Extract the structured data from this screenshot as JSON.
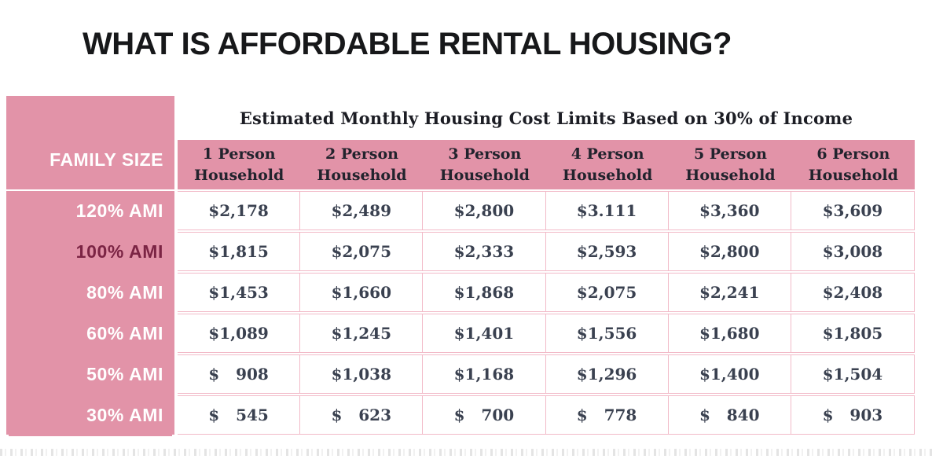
{
  "title": "WHAT IS AFFORDABLE RENTAL HOUSING?",
  "table": {
    "corner_label": "FAMILY SIZE",
    "header": "Estimated Monthly Housing Cost Limits Based on 30% of Income",
    "columns": [
      {
        "label": "1 Person Household"
      },
      {
        "label": "2 Person Household"
      },
      {
        "label": "3 Person Household"
      },
      {
        "label": "4 Person Household"
      },
      {
        "label": "5 Person Household"
      },
      {
        "label": "6 Person Household"
      }
    ],
    "rows": [
      {
        "label": "120% AMI",
        "label_color": "#ffffff",
        "values": [
          "$2,178",
          "$2,489",
          "$2,800",
          "$3.111",
          "$3,360",
          "$3,609"
        ]
      },
      {
        "label": "100% AMI",
        "label_color": "#7b2444",
        "values": [
          "$1,815",
          "$2,075",
          "$2,333",
          "$2,593",
          "$2,800",
          "$3,008"
        ]
      },
      {
        "label": "80% AMI",
        "label_color": "#ffffff",
        "values": [
          "$1,453",
          "$1,660",
          "$1,868",
          "$2,075",
          "$2,241",
          "$2,408"
        ]
      },
      {
        "label": "60% AMI",
        "label_color": "#ffffff",
        "values": [
          "$1,089",
          "$1,245",
          "$1,401",
          "$1,556",
          "$1,680",
          "$1,805"
        ]
      },
      {
        "label": "50% AMI",
        "label_color": "#ffffff",
        "values": [
          "$   908",
          "$1,038",
          "$1,168",
          "$1,296",
          "$1,400",
          "$1,504"
        ]
      },
      {
        "label": "30% AMI",
        "label_color": "#ffffff",
        "values": [
          "$   545",
          "$   623",
          "$   700",
          "$   778",
          "$   840",
          "$   903"
        ]
      }
    ]
  },
  "colors": {
    "pink": "#e293a8",
    "grid_pink": "#f2bac8",
    "title_text": "#17181a",
    "cell_text": "#3a4150",
    "maroon_label": "#7b2444",
    "white_label": "#ffffff"
  },
  "chart_data": {
    "type": "table",
    "title": "Estimated Monthly Housing Cost Limits Based on 30% of Income",
    "row_header": "FAMILY SIZE",
    "columns": [
      "1 Person Household",
      "2 Person Household",
      "3 Person Household",
      "4 Person Household",
      "5 Person Household",
      "6 Person Household"
    ],
    "rows": [
      "120% AMI",
      "100% AMI",
      "80% AMI",
      "60% AMI",
      "50% AMI",
      "30% AMI"
    ],
    "values": [
      [
        2178,
        2489,
        2800,
        3111,
        3360,
        3609
      ],
      [
        1815,
        2075,
        2333,
        2593,
        2800,
        3008
      ],
      [
        1453,
        1660,
        1868,
        2075,
        2241,
        2408
      ],
      [
        1089,
        1245,
        1401,
        1556,
        1680,
        1805
      ],
      [
        908,
        1038,
        1168,
        1296,
        1400,
        1504
      ],
      [
        545,
        623,
        700,
        778,
        840,
        903
      ]
    ]
  }
}
